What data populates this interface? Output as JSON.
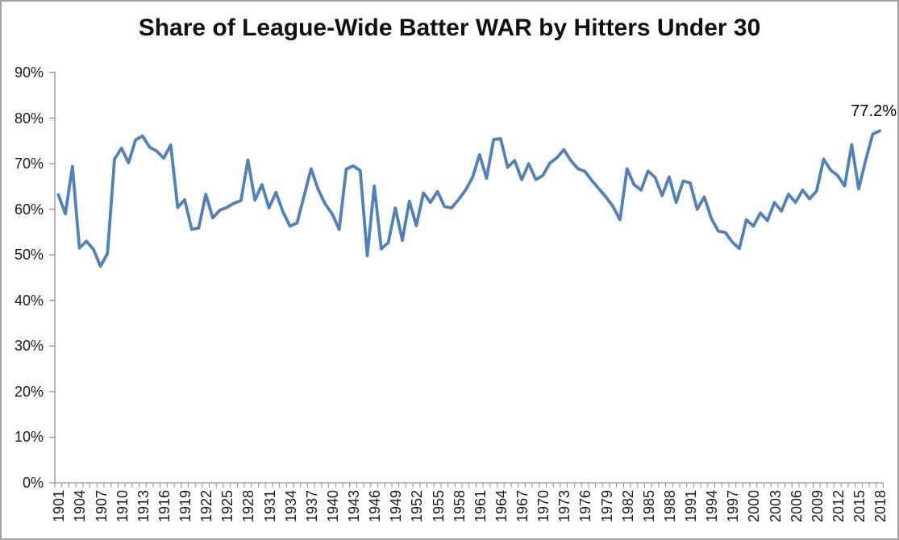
{
  "chart_data": {
    "type": "line",
    "title": "Share of League-Wide Batter WAR by Hitters Under 30",
    "xlabel": "",
    "ylabel": "",
    "grid": false,
    "legend_position": "none",
    "line_color": "#4F81BD",
    "ylim_percent": [
      0,
      90
    ],
    "y_tick_labels": [
      "0%",
      "10%",
      "20%",
      "30%",
      "40%",
      "50%",
      "60%",
      "70%",
      "80%",
      "90%"
    ],
    "x_tick_labels": [
      "1901",
      "1904",
      "1907",
      "1910",
      "1913",
      "1916",
      "1919",
      "1922",
      "1925",
      "1928",
      "1931",
      "1934",
      "1937",
      "1940",
      "1943",
      "1946",
      "1949",
      "1952",
      "1955",
      "1958",
      "1961",
      "1964",
      "1967",
      "1970",
      "1973",
      "1976",
      "1979",
      "1982",
      "1985",
      "1988",
      "1991",
      "1994",
      "1997",
      "2000",
      "2003",
      "2006",
      "2009",
      "2012",
      "2015",
      "2018"
    ],
    "x_label_interval_years": 3,
    "x_minor_tick_interval_years": 1,
    "series_start_year": 1901,
    "series_end_year": 2018,
    "end_point_label": "77.2%",
    "values_percent": [
      63.2,
      59.0,
      69.4,
      51.5,
      53.0,
      51.2,
      47.5,
      50.3,
      71.0,
      73.4,
      70.2,
      75.2,
      76.1,
      73.6,
      72.8,
      71.2,
      74.1,
      60.4,
      62.1,
      55.6,
      55.9,
      63.3,
      58.1,
      59.8,
      60.4,
      61.3,
      61.9,
      70.8,
      62.0,
      65.4,
      60.3,
      63.7,
      59.4,
      56.3,
      57.0,
      62.9,
      68.9,
      64.4,
      61.2,
      59.0,
      55.6,
      68.8,
      69.5,
      68.5,
      49.8,
      65.1,
      51.3,
      52.7,
      60.3,
      53.2,
      61.8,
      56.4,
      63.6,
      61.5,
      63.9,
      60.6,
      60.3,
      62.1,
      64.2,
      67.0,
      72.0,
      66.8,
      75.3,
      75.5,
      69.2,
      70.7,
      66.5,
      70.0,
      66.5,
      67.4,
      70.1,
      71.3,
      73.1,
      70.7,
      68.9,
      68.3,
      66.3,
      64.5,
      62.7,
      60.6,
      57.7,
      68.9,
      65.4,
      64.2,
      68.4,
      67.0,
      63.0,
      67.1,
      61.5,
      66.2,
      65.8,
      60.0,
      62.7,
      58.0,
      55.2,
      54.9,
      52.8,
      51.4,
      57.7,
      56.3,
      59.2,
      57.5,
      61.5,
      59.6,
      63.3,
      61.5,
      64.2,
      62.3,
      64.0,
      71.0,
      68.6,
      67.4,
      65.1,
      74.2,
      64.5,
      70.8,
      76.5,
      77.2
    ]
  },
  "colors": {
    "line": "#4F81BD",
    "axis": "#8f8f8f",
    "text": "#1a1a1a",
    "frame": "#a3a3a3",
    "background": "#ffffff"
  }
}
